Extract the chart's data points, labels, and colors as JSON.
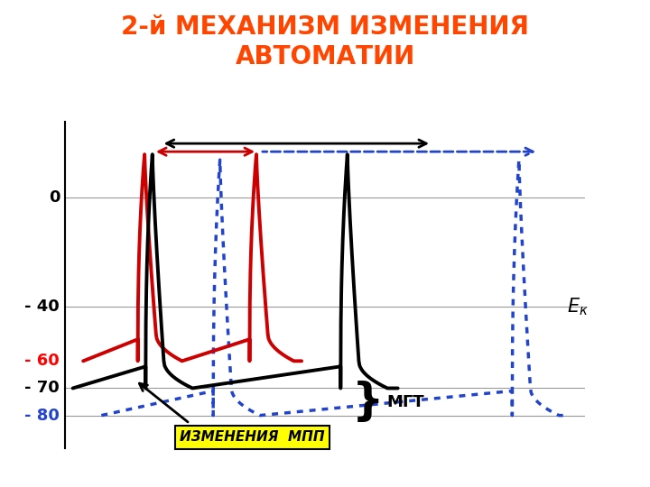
{
  "title_line1": "2-й МЕХАНИЗМ ИЗМЕНЕНИЯ",
  "title_line2": "АВТОМАТИИ",
  "title_color": "#FF4500",
  "title_fontsize": 20,
  "bg_color": "#FFFFFF",
  "ylim": [
    -92,
    28
  ],
  "xlim": [
    0,
    10
  ],
  "ek_label": "Eк",
  "mgt_label": "МГТ",
  "izmpp_label": "ИЗМЕНЕНИЯ  МПП",
  "grid_color": "#999999",
  "line_color_black": "#000000",
  "line_color_red": "#CC0000",
  "line_color_blue_dot": "#2244CC",
  "bl_black": -70,
  "bl_red": -60,
  "bl_blue": -80
}
